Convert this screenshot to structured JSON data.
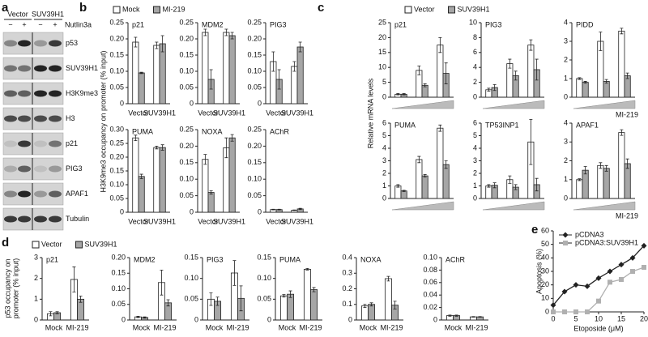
{
  "blot": {
    "label": "a",
    "groups": [
      "Vector",
      "SUV39H1"
    ],
    "treatment": "Nutlin3a",
    "lanes": [
      "−",
      "+",
      "−",
      "+"
    ],
    "proteins": [
      "p53",
      "SUV39H1",
      "H3K9me3",
      "H3",
      "p21",
      "PIG3",
      "APAF1",
      "Tubulin"
    ]
  },
  "chart_data": [
    {
      "type": "bar",
      "label": "b",
      "ylabel": "H3K9me3 occupancy on promoter (% input)",
      "categories": [
        "Vector",
        "SUV39H1"
      ],
      "series": [
        {
          "name": "Mock",
          "color": "#ffffff"
        },
        {
          "name": "MI-219",
          "color": "#a6a6a6"
        }
      ],
      "subplots": [
        {
          "title": "p21",
          "ylim": [
            0,
            0.25
          ],
          "yticks": [
            0,
            0.05,
            {
              "value": 0.1,
              "label": "0.10"
            },
            0.15,
            {
              "value": 0.2,
              "label": "0.20"
            },
            0.25
          ],
          "values": [
            [
              0.19,
              0.18
            ],
            [
              0.095,
              0.185
            ]
          ],
          "errors": [
            [
              0.015,
              0.01
            ],
            [
              0.002,
              0.025
            ]
          ]
        },
        {
          "title": "MDM2",
          "ylim": [
            0,
            0.25
          ],
          "yticks": [
            0,
            0.05,
            {
              "value": 0.1,
              "label": "0.10"
            },
            0.15,
            {
              "value": 0.2,
              "label": "0.20"
            },
            0.25
          ],
          "values": [
            [
              0.22,
              0.22
            ],
            [
              0.075,
              0.21
            ]
          ],
          "errors": [
            [
              0.01,
              0.01
            ],
            [
              0.03,
              0.01
            ]
          ]
        },
        {
          "title": "PIG3",
          "ylim": [
            0,
            0.25
          ],
          "yticks": [
            0,
            0.05,
            {
              "value": 0.1,
              "label": "0.10"
            },
            0.15,
            {
              "value": 0.2,
              "label": "0.20"
            },
            0.25
          ],
          "values": [
            [
              0.13,
              0.115
            ],
            [
              0.075,
              0.175
            ]
          ],
          "errors": [
            [
              0.03,
              0.015
            ],
            [
              0.03,
              0.015
            ]
          ]
        },
        {
          "title": "PUMA",
          "ylim": [
            0,
            0.3
          ],
          "yticks": [
            0,
            0.05,
            {
              "value": 0.1,
              "label": "0.10"
            },
            0.15,
            {
              "value": 0.2,
              "label": "0.20"
            },
            0.25,
            {
              "value": 0.3,
              "label": "0.30"
            }
          ],
          "values": [
            [
              0.27,
              0.235
            ],
            [
              0.13,
              0.235
            ]
          ],
          "errors": [
            [
              0.01,
              0.005
            ],
            [
              0.008,
              0.01
            ]
          ]
        },
        {
          "title": "NOXA",
          "ylim": [
            0,
            0.25
          ],
          "yticks": [
            0,
            0.05,
            {
              "value": 0.1,
              "label": "0.10"
            },
            0.15,
            {
              "value": 0.2,
              "label": "0.20"
            },
            0.25
          ],
          "values": [
            [
              0.16,
              0.195
            ],
            [
              0.06,
              0.225
            ]
          ],
          "errors": [
            [
              0.015,
              0.03
            ],
            [
              0.005,
              0.01
            ]
          ]
        },
        {
          "title": "AChR",
          "ylim": [
            0,
            0.25
          ],
          "yticks": [
            0,
            0.05,
            {
              "value": 0.1,
              "label": "0.10"
            },
            0.15,
            {
              "value": 0.2,
              "label": "0.20"
            },
            0.25
          ],
          "values": [
            [
              0.008,
              0.006
            ],
            [
              0.008,
              0.01
            ]
          ],
          "errors": [
            [
              0.001,
              0.001
            ],
            [
              0.001,
              0.002
            ]
          ]
        }
      ]
    },
    {
      "type": "bar",
      "label": "c",
      "ylabel": "Relative mRNA levels",
      "categories": [
        null,
        null,
        null
      ],
      "series": [
        {
          "name": "Vector",
          "color": "#ffffff"
        },
        {
          "name": "SUV39H1",
          "color": "#a6a6a6"
        }
      ],
      "subplots": [
        {
          "title": "p21",
          "ylim": [
            0,
            25
          ],
          "yticks": [
            0,
            5,
            10,
            15,
            20,
            25
          ],
          "values": [
            [
              1,
              9,
              17.5
            ],
            [
              1,
              4,
              8
            ]
          ],
          "errors": [
            [
              0.2,
              1.5,
              2.5
            ],
            [
              0.2,
              0.5,
              3.5
            ]
          ]
        },
        {
          "title": "PIG3",
          "ylim": [
            0,
            10
          ],
          "yticks": [
            0,
            2,
            4,
            6,
            8,
            10
          ],
          "values": [
            [
              1,
              4.5,
              7
            ],
            [
              1.3,
              2.9,
              3.7
            ]
          ],
          "errors": [
            [
              0.2,
              0.6,
              0.7
            ],
            [
              0.4,
              0.6,
              1.4
            ]
          ]
        },
        {
          "title": "PIDD",
          "xlabel": "MI-219",
          "ylim": [
            0,
            4
          ],
          "yticks": [
            0,
            1,
            2,
            3,
            4
          ],
          "values": [
            [
              1,
              3,
              3.55
            ],
            [
              0.8,
              0.85,
              1.15
            ]
          ],
          "errors": [
            [
              0.05,
              0.5,
              0.15
            ],
            [
              0.05,
              0.1,
              0.15
            ]
          ]
        },
        {
          "title": "PUMA",
          "ylim": [
            0,
            6
          ],
          "yticks": [
            0,
            1,
            2,
            3,
            4,
            5,
            6
          ],
          "values": [
            [
              1,
              3.1,
              5.6
            ],
            [
              0.6,
              1.8,
              2.7
            ]
          ],
          "errors": [
            [
              0.1,
              0.25,
              0.25
            ],
            [
              0.05,
              0.1,
              0.3
            ]
          ]
        },
        {
          "title": "TP53INP1",
          "ylim": [
            0,
            6
          ],
          "yticks": [
            0,
            1,
            2,
            3,
            4,
            5,
            6
          ],
          "values": [
            [
              1,
              1.5,
              4.5
            ],
            [
              1.05,
              0.9,
              1.1
            ]
          ],
          "errors": [
            [
              0.1,
              0.3,
              1.8
            ],
            [
              0.2,
              0.2,
              0.5
            ]
          ]
        },
        {
          "title": "APAF1",
          "xlabel": "MI-219",
          "ylim": [
            0,
            4
          ],
          "yticks": [
            0,
            1,
            2,
            3,
            4
          ],
          "values": [
            [
              1,
              1.75,
              3.5
            ],
            [
              1.5,
              1.6,
              1.85
            ]
          ],
          "errors": [
            [
              0.05,
              0.15,
              0.15
            ],
            [
              0.2,
              0.15,
              0.25
            ]
          ]
        }
      ]
    },
    {
      "type": "bar",
      "label": "d",
      "ylabel": [
        "p53 occupancy on",
        "promoter (% input)"
      ],
      "categories": [
        "Mock",
        "MI-219"
      ],
      "series": [
        {
          "name": "Vector",
          "color": "#ffffff"
        },
        {
          "name": "SUV39H1",
          "color": "#a6a6a6"
        }
      ],
      "subplots": [
        {
          "title": "p21",
          "ylim": [
            0,
            3
          ],
          "yticks": [
            0,
            1,
            2,
            3
          ],
          "values": [
            [
              0.3,
              1.95
            ],
            [
              0.35,
              1.0
            ]
          ],
          "errors": [
            [
              0.1,
              0.6
            ],
            [
              0.05,
              0.15
            ]
          ]
        },
        {
          "title": "MDM2",
          "ylim": [
            0,
            0.2
          ],
          "yticks": [
            0,
            0.05,
            {
              "value": 0.1,
              "label": "0.10"
            },
            0.15,
            {
              "value": 0.2,
              "label": "0.20"
            }
          ],
          "values": [
            [
              0.01,
              0.12
            ],
            [
              0.008,
              0.055
            ]
          ],
          "errors": [
            [
              0.002,
              0.04
            ],
            [
              0.002,
              0.01
            ]
          ]
        },
        {
          "title": "PIG3",
          "ylim": [
            0,
            0.15
          ],
          "yticks": [
            0,
            0.05,
            {
              "value": 0.1,
              "label": "0.10"
            },
            0.15
          ],
          "values": [
            [
              0.05,
              0.113
            ],
            [
              0.045,
              0.052
            ]
          ],
          "errors": [
            [
              0.015,
              0.03
            ],
            [
              0.01,
              0.03
            ]
          ]
        },
        {
          "title": "PUMA",
          "ylim": [
            0,
            0.15
          ],
          "yticks": [
            0,
            0.05,
            {
              "value": 0.1,
              "label": "0.10"
            },
            0.15
          ],
          "values": [
            [
              0.058,
              0.122
            ],
            [
              0.062,
              0.073
            ]
          ],
          "errors": [
            [
              0.003,
              0.002
            ],
            [
              0.008,
              0.005
            ]
          ]
        },
        {
          "title": "NOXA",
          "ylim": [
            0,
            0.4
          ],
          "yticks": [
            0,
            0.1,
            0.2,
            0.3,
            0.4
          ],
          "values": [
            [
              0.09,
              0.265
            ],
            [
              0.1,
              0.095
            ]
          ],
          "errors": [
            [
              0.01,
              0.015
            ],
            [
              0.01,
              0.025
            ]
          ]
        },
        {
          "title": "AChR",
          "ylim": [
            0,
            0.1
          ],
          "yticks": [
            0,
            0.02,
            0.04,
            0.06,
            0.08,
            {
              "value": 0.1,
              "label": "0.10"
            }
          ],
          "values": [
            [
              0.007,
              0.005
            ],
            [
              0.007,
              0.005
            ]
          ],
          "errors": [
            [
              0.001,
              0.0005
            ],
            [
              0.001,
              0.0005
            ]
          ]
        }
      ]
    },
    {
      "type": "line",
      "label": "e",
      "xlabel": "Etoposide (μM)",
      "ylabel": "Apoptosis (%)",
      "xlim": [
        0,
        20
      ],
      "xticks": [
        0,
        5,
        10,
        15,
        20
      ],
      "ylim": [
        0,
        60
      ],
      "yticks": [
        0,
        10,
        20,
        30,
        40,
        50,
        60
      ],
      "x": [
        0,
        2.5,
        5,
        7.5,
        10,
        12.5,
        15,
        17.5,
        20
      ],
      "series": [
        {
          "name": "pCDNA3",
          "color": "#222222",
          "marker": "diamond",
          "values": [
            5,
            15,
            20,
            19,
            25,
            30,
            35,
            40,
            49
          ]
        },
        {
          "name": "pCDNA3:SUV39H1",
          "color": "#b0b0b0",
          "marker": "square",
          "values": [
            0,
            0,
            0,
            0,
            8,
            22,
            24,
            30,
            33
          ]
        }
      ]
    }
  ]
}
